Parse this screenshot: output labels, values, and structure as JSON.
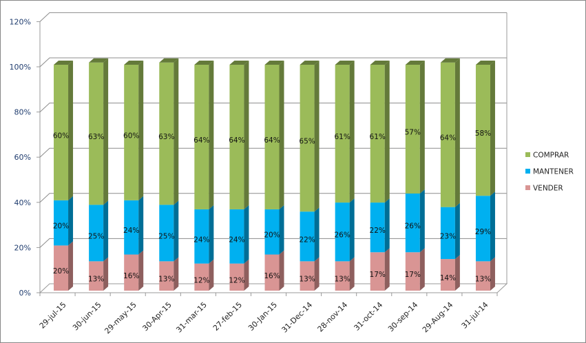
{
  "chart_data": {
    "type": "bar",
    "stacked": true,
    "three_d": true,
    "title": "",
    "xlabel": "",
    "ylabel": "",
    "ylim": [
      0,
      120
    ],
    "yticks": [
      "0%",
      "20%",
      "40%",
      "60%",
      "80%",
      "100%",
      "120%"
    ],
    "grid": true,
    "legend_position": "right",
    "categories": [
      "29-jul-15",
      "30-jun-15",
      "29-may-15",
      "30-Apr-15",
      "31-mar-15",
      "27-feb-15",
      "30-Jan-15",
      "31-Dec-14",
      "28-nov-14",
      "31-oct-14",
      "30-sep-14",
      "29-Aug-14",
      "31-jul-14"
    ],
    "series": [
      {
        "name": "VENDER",
        "color": "#d99594",
        "side": "#8e5f5e",
        "values": [
          20,
          13,
          16,
          13,
          12,
          12,
          16,
          13,
          13,
          17,
          17,
          14,
          13
        ]
      },
      {
        "name": "MANTENER",
        "color": "#00b0f0",
        "side": "#006e96",
        "values": [
          20,
          25,
          24,
          25,
          24,
          24,
          20,
          22,
          26,
          22,
          26,
          23,
          29
        ]
      },
      {
        "name": "COMPRAR",
        "color": "#9bbb59",
        "side": "#647a3a",
        "values": [
          60,
          63,
          60,
          63,
          64,
          64,
          64,
          65,
          61,
          61,
          57,
          64,
          58
        ]
      }
    ],
    "legend_order": [
      "COMPRAR",
      "MANTENER",
      "VENDER"
    ]
  }
}
